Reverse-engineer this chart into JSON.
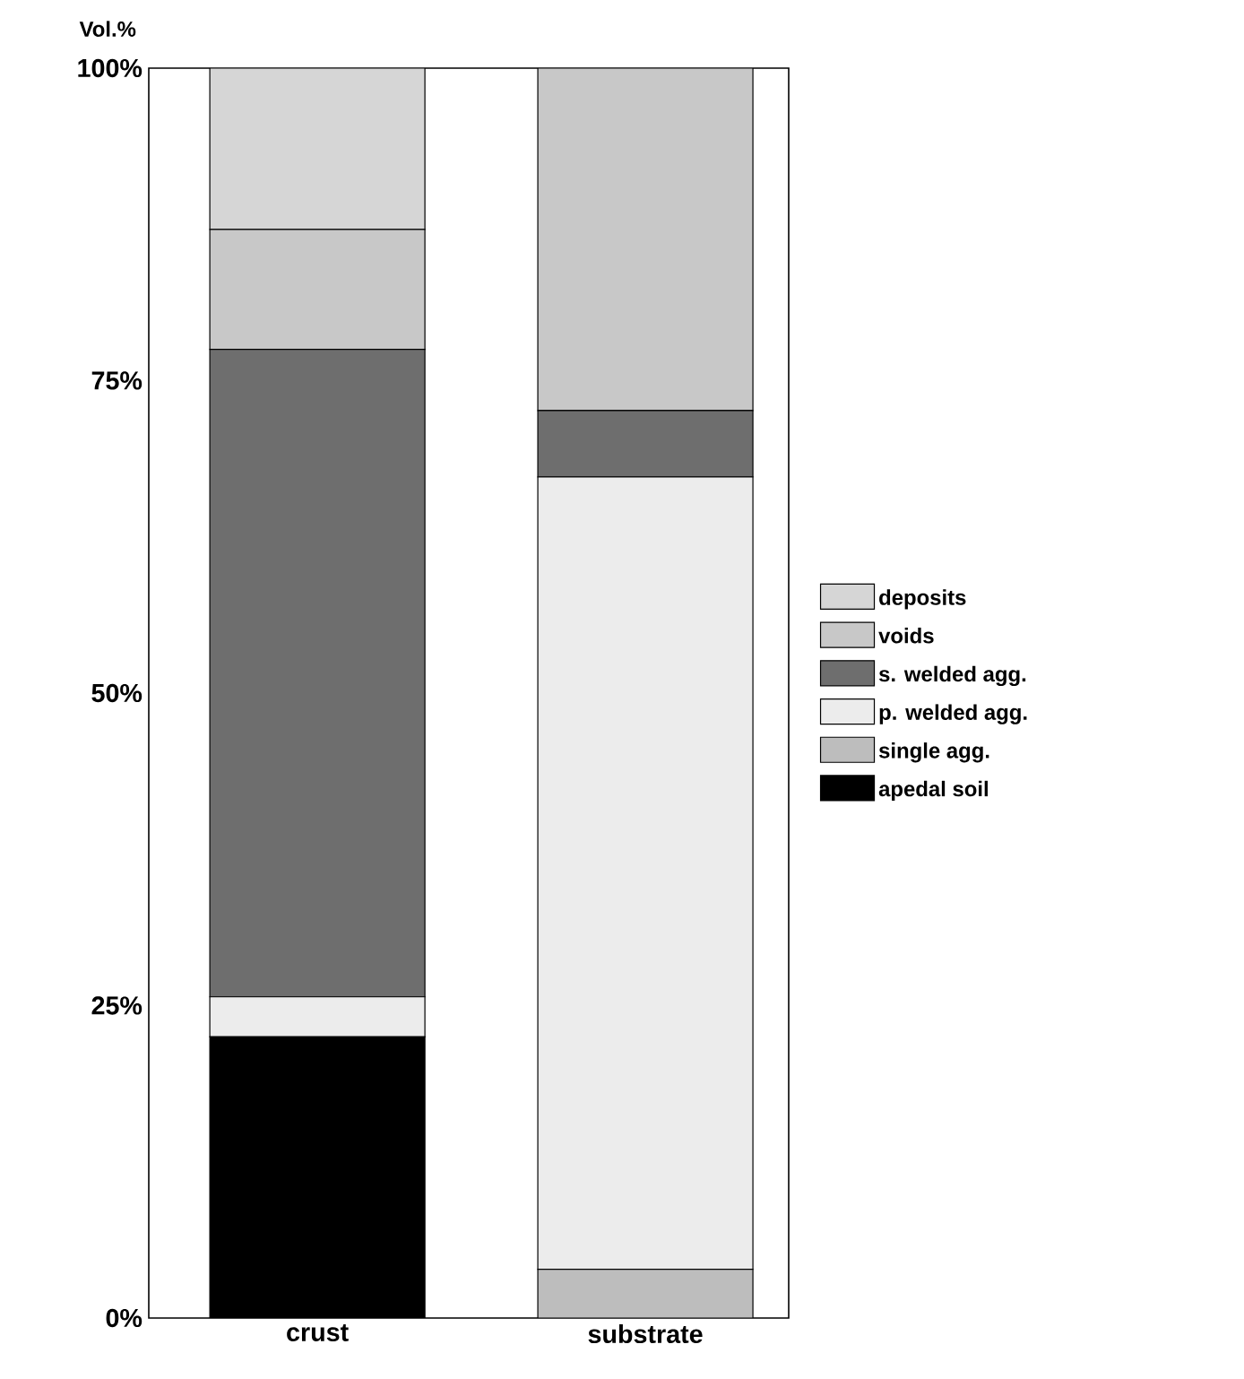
{
  "chart_data": {
    "type": "bar",
    "stacked": true,
    "ylabel": "Vol.%",
    "categories": [
      "crust",
      "substrate"
    ],
    "series": [
      {
        "name": "apedal soil",
        "color": "#000000",
        "values": [
          22.5,
          0
        ]
      },
      {
        "name": "single agg.",
        "color": "#bdbdbd",
        "values": [
          0,
          3.9
        ]
      },
      {
        "name": "p. welded agg.",
        "color": "#ececec",
        "values": [
          3.2,
          63.4
        ]
      },
      {
        "name": "s. welded agg.",
        "color": "#6e6e6e",
        "values": [
          51.8,
          5.3
        ]
      },
      {
        "name": "voids",
        "color": "#c8c8c8",
        "values": [
          9.6,
          27.4
        ]
      },
      {
        "name": "deposits",
        "color": "#d6d6d6",
        "values": [
          12.9,
          0
        ]
      }
    ],
    "ylim": [
      0,
      100
    ],
    "yticks": [
      {
        "value": 0,
        "label": "0%"
      },
      {
        "value": 25,
        "label": "25%"
      },
      {
        "value": 50,
        "label": "50%"
      },
      {
        "value": 75,
        "label": "75%"
      },
      {
        "value": 100,
        "label": "100%"
      }
    ],
    "grid": false,
    "legend": "right"
  }
}
